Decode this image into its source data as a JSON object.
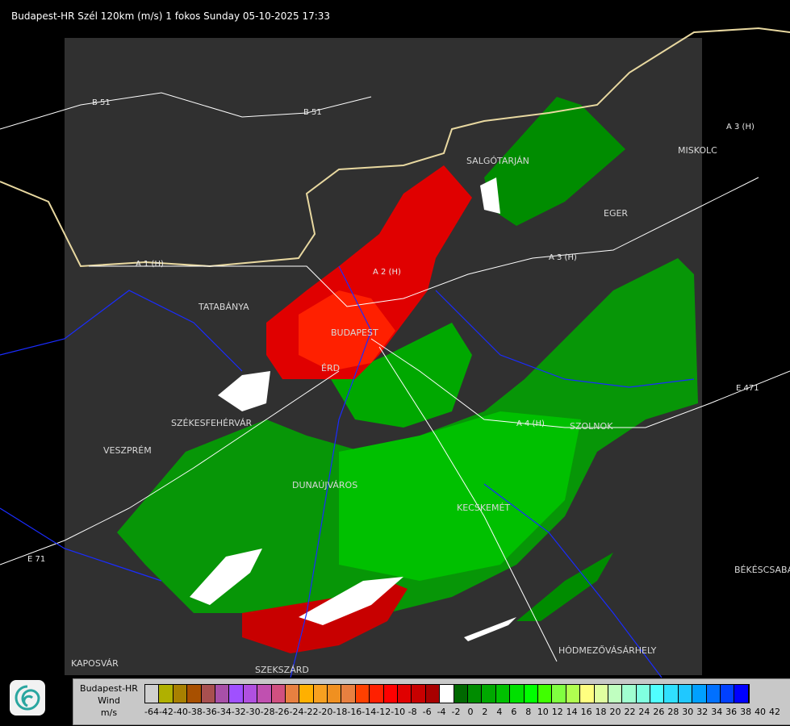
{
  "title": "Budapest-HR Szél 120km (m/s) 1 fokos Sunday 05-10-2025 17:33",
  "map": {
    "cities": [
      "SALGÓTARJÁN",
      "EGER",
      "MISKOLC",
      "TATABÁNYA",
      "BUDAPEST",
      "ÉRD",
      "SZÉKESFEHÉRVÁR",
      "VESZPRÉM",
      "DUNAÚJVÁROS",
      "KECSKEMÉT",
      "SZOLNOK",
      "BÉKÉSCSABA",
      "HÓDMEZŐVÁSÁRHELY",
      "KAPOSVÁR",
      "SZEKSZÁRD"
    ],
    "roads": [
      "B 51",
      "B 51",
      "A 3 (H)",
      "A 3 (H)",
      "A 1 (H)",
      "A 2 (H)",
      "A 4 (H)",
      "E 471",
      "E 71"
    ]
  },
  "legend": {
    "station": "Budapest-HR",
    "quantity": "Wind",
    "unit": "m/s",
    "labels": [
      "-64",
      "-42",
      "-40",
      "-38",
      "-36",
      "-34",
      "-32",
      "-30",
      "-28",
      "-26",
      "-24",
      "-22",
      "-20",
      "-18",
      "-16",
      "-14",
      "-12",
      "-10",
      "-8",
      "-6",
      "-4",
      "-2",
      "0",
      "2",
      "4",
      "6",
      "8",
      "10",
      "12",
      "14",
      "16",
      "18",
      "20",
      "22",
      "24",
      "26",
      "28",
      "30",
      "32",
      "34",
      "36",
      "38",
      "40",
      "42"
    ],
    "colors": [
      "#d0d0d0",
      "#b0b000",
      "#a88000",
      "#a85000",
      "#a85050",
      "#a850a8",
      "#a050ff",
      "#b050e0",
      "#c050b0",
      "#d05080",
      "#e88040",
      "#ffb000",
      "#f8a020",
      "#f09020",
      "#e88040",
      "#ff4000",
      "#ff2000",
      "#ff0000",
      "#e00000",
      "#c80000",
      "#a80000",
      "#ffffff",
      "#006800",
      "#008c00",
      "#00a800",
      "#00c000",
      "#00e000",
      "#00ff00",
      "#40ff00",
      "#80ff40",
      "#b0ff50",
      "#ffff80",
      "#e0ffa0",
      "#c0ffc0",
      "#a0ffd0",
      "#80ffe0",
      "#50ffff",
      "#30e0ff",
      "#20c8ff",
      "#00a0ff",
      "#0070ff",
      "#0040ff",
      "#0000ff"
    ]
  }
}
